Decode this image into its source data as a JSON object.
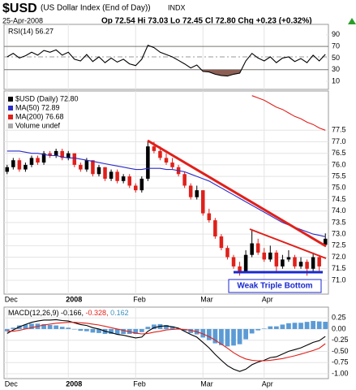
{
  "header": {
    "symbol": "$USD",
    "name": "(US Dollar Index (End of Day))",
    "exchange": "INDX",
    "date": "25-Apr-2008",
    "quote": "Op 72.54 Hi 73.03 Lo 72.45 Cl 72.80 Chg +0.23 (+0.32%)"
  },
  "chart_data": [
    {
      "type": "line",
      "title": "RSI(14) 56.27",
      "ylim": [
        -4,
        108
      ],
      "yticks": [
        90,
        70,
        50,
        30,
        10
      ],
      "bands": [
        70,
        30
      ],
      "band_fill": "#8c5f55",
      "series": [
        {
          "color": "#000000",
          "values": [
            52,
            58,
            50,
            54,
            60,
            55,
            63,
            60,
            64,
            55,
            60,
            48,
            45,
            56,
            44,
            52,
            42,
            50,
            43,
            48,
            40,
            37,
            48,
            72,
            68,
            60,
            56,
            52,
            46,
            40,
            33,
            38,
            27,
            26,
            22,
            20,
            19,
            22,
            24,
            45,
            58,
            50,
            45,
            52,
            42,
            50,
            52,
            44,
            49,
            42,
            55,
            45,
            56.27
          ]
        }
      ]
    },
    {
      "type": "candlestick",
      "ylim": [
        70.4,
        79.2
      ],
      "grid": true,
      "yticks": [
        77.5,
        {
          "value": 77,
          "label": "77.0"
        },
        76.5,
        {
          "value": 76,
          "label": "76.0"
        },
        75.5,
        {
          "value": 75,
          "label": "75.0"
        },
        74.5,
        {
          "value": 74,
          "label": "74.0"
        },
        73.5,
        {
          "value": 73,
          "label": "73.0"
        },
        72.5,
        {
          "value": 72,
          "label": "72.0"
        },
        71.5,
        {
          "value": 71,
          "label": "71.0"
        }
      ],
      "categories": [
        "Dec",
        null,
        null,
        null,
        null,
        null,
        null,
        null,
        null,
        null,
        "2008",
        null,
        null,
        null,
        null,
        null,
        null,
        null,
        null,
        null,
        null,
        "Feb",
        null,
        null,
        null,
        null,
        null,
        null,
        null,
        null,
        null,
        null,
        "Mar",
        null,
        null,
        null,
        null,
        null,
        null,
        null,
        null,
        null,
        "Apr",
        null,
        null,
        null,
        null,
        null,
        null,
        null,
        null,
        null,
        null
      ],
      "annotation": "Weak Triple Bottom",
      "legend_extra": "Volume undef",
      "series": [
        {
          "name": "$USD (Daily) 72.80",
          "up_color": "#000000",
          "down_color": "#e0201a",
          "ohlc": [
            [
              75.7,
              76.0,
              75.6,
              75.9
            ],
            [
              75.9,
              76.3,
              75.8,
              76.2
            ],
            [
              76.2,
              76.3,
              75.7,
              75.8
            ],
            [
              75.8,
              76.1,
              75.7,
              76.0
            ],
            [
              76.0,
              76.4,
              75.9,
              76.3
            ],
            [
              76.3,
              76.4,
              76.0,
              76.1
            ],
            [
              76.1,
              76.6,
              76.0,
              76.5
            ],
            [
              76.5,
              76.6,
              76.3,
              76.4
            ],
            [
              76.4,
              76.7,
              76.3,
              76.6
            ],
            [
              76.6,
              76.7,
              76.2,
              76.3
            ],
            [
              76.3,
              76.6,
              76.2,
              76.5
            ],
            [
              76.5,
              76.5,
              75.9,
              76.0
            ],
            [
              76.0,
              76.1,
              75.7,
              75.8
            ],
            [
              75.8,
              76.3,
              75.7,
              76.2
            ],
            [
              76.2,
              76.2,
              75.5,
              75.6
            ],
            [
              75.6,
              76.0,
              75.5,
              75.9
            ],
            [
              75.9,
              75.9,
              75.3,
              75.4
            ],
            [
              75.4,
              75.8,
              75.3,
              75.7
            ],
            [
              75.7,
              75.8,
              75.2,
              75.3
            ],
            [
              75.3,
              75.6,
              75.2,
              75.5
            ],
            [
              75.5,
              75.6,
              75.0,
              75.1
            ],
            [
              75.1,
              75.2,
              74.8,
              74.9
            ],
            [
              74.9,
              75.5,
              74.8,
              75.4
            ],
            [
              75.4,
              77.0,
              75.3,
              76.8
            ],
            [
              76.8,
              77.0,
              76.5,
              76.6
            ],
            [
              76.6,
              76.8,
              76.2,
              76.3
            ],
            [
              76.3,
              76.5,
              76.0,
              76.1
            ],
            [
              76.1,
              76.3,
              75.8,
              75.9
            ],
            [
              75.9,
              76.0,
              75.5,
              75.6
            ],
            [
              75.6,
              75.7,
              75.0,
              75.1
            ],
            [
              75.1,
              75.2,
              74.5,
              74.6
            ],
            [
              74.6,
              75.1,
              74.5,
              74.9
            ],
            [
              74.9,
              74.9,
              73.8,
              73.9
            ],
            [
              73.9,
              74.1,
              73.5,
              73.6
            ],
            [
              73.6,
              73.7,
              72.8,
              72.9
            ],
            [
              72.9,
              73.0,
              72.3,
              72.4
            ],
            [
              72.4,
              72.5,
              71.9,
              72.0
            ],
            [
              72.0,
              72.1,
              71.5,
              71.6
            ],
            [
              71.6,
              71.8,
              71.2,
              71.4
            ],
            [
              71.4,
              72.3,
              71.3,
              72.1
            ],
            [
              72.1,
              73.2,
              72.0,
              72.6
            ],
            [
              72.6,
              72.8,
              72.1,
              72.2
            ],
            [
              72.2,
              72.4,
              71.8,
              71.9
            ],
            [
              71.9,
              72.5,
              71.8,
              72.2
            ],
            [
              72.2,
              72.3,
              71.4,
              71.6
            ],
            [
              71.6,
              72.1,
              71.5,
              71.9
            ],
            [
              71.9,
              72.3,
              71.8,
              72.0
            ],
            [
              72.0,
              72.1,
              71.5,
              71.6
            ],
            [
              71.6,
              72.0,
              71.5,
              71.8
            ],
            [
              71.8,
              71.9,
              71.2,
              71.5
            ],
            [
              71.5,
              72.2,
              71.4,
              72.0
            ],
            [
              72.0,
              72.1,
              71.4,
              71.6
            ],
            [
              72.54,
              73.03,
              72.45,
              72.8
            ]
          ]
        },
        {
          "name": "MA(50) 72.89",
          "color": "#2c2cc8",
          "values": [
            76.6,
            76.6,
            76.6,
            76.55,
            76.5,
            76.5,
            76.45,
            76.4,
            76.4,
            76.35,
            76.3,
            76.3,
            76.25,
            76.2,
            76.15,
            76.1,
            76.05,
            76.0,
            75.95,
            75.9,
            75.85,
            75.8,
            75.8,
            75.85,
            75.85,
            75.85,
            75.8,
            75.8,
            75.75,
            75.7,
            75.6,
            75.5,
            75.4,
            75.3,
            75.15,
            75.0,
            74.85,
            74.7,
            74.55,
            74.4,
            74.25,
            74.1,
            73.95,
            73.8,
            73.65,
            73.5,
            73.4,
            73.3,
            73.2,
            73.1,
            73.0,
            72.95,
            72.89
          ]
        },
        {
          "name": "MA(200) 76.68",
          "color": "#e0201a",
          "values": [
            null,
            null,
            null,
            null,
            null,
            null,
            null,
            null,
            null,
            null,
            null,
            null,
            null,
            null,
            null,
            null,
            null,
            null,
            null,
            null,
            null,
            null,
            null,
            null,
            null,
            null,
            null,
            null,
            null,
            null,
            null,
            null,
            null,
            null,
            null,
            null,
            null,
            null,
            null,
            null,
            79.0,
            78.9,
            78.8,
            78.65,
            78.5,
            78.4,
            78.25,
            78.1,
            78.0,
            77.85,
            77.75,
            77.6,
            77.5
          ]
        }
      ]
    },
    {
      "type": "line",
      "ylim": [
        -1.11,
        0.49
      ],
      "grid": true,
      "yticks": [
        0.25,
        {
          "value": 0,
          "label": "0.00"
        },
        -0.25,
        {
          "value": -0.5,
          "label": "-0.50"
        },
        -0.75,
        {
          "value": -1,
          "label": "-1.00"
        }
      ],
      "title_parts": [
        {
          "text": "MACD(12,26,9) -0.166,",
          "color": "#000000"
        },
        {
          "text": " -0.328,",
          "color": "#e0201a"
        },
        {
          "text": " 0.162",
          "color": "#3a8fbf"
        }
      ],
      "series": [
        {
          "type": "bar",
          "color": "#5b9bd5",
          "values": [
            -0.05,
            0.03,
            0.08,
            0.1,
            0.12,
            0.12,
            0.11,
            0.09,
            0.08,
            0.05,
            0.03,
            -0.01,
            -0.04,
            -0.05,
            -0.08,
            -0.09,
            -0.11,
            -0.11,
            -0.12,
            -0.11,
            -0.11,
            -0.11,
            -0.07,
            0.05,
            0.1,
            0.11,
            0.09,
            0.06,
            0.02,
            -0.04,
            -0.09,
            -0.12,
            -0.19,
            -0.25,
            -0.32,
            -0.36,
            -0.39,
            -0.37,
            -0.34,
            -0.23,
            -0.1,
            -0.03,
            0.01,
            0.06,
            0.06,
            0.1,
            0.13,
            0.14,
            0.14,
            0.16,
            0.18,
            0.17,
            0.162
          ]
        },
        {
          "color": "#000000",
          "values": [
            -0.1,
            -0.02,
            0.05,
            0.1,
            0.15,
            0.18,
            0.2,
            0.2,
            0.21,
            0.19,
            0.18,
            0.14,
            0.1,
            0.08,
            0.03,
            0.0,
            -0.05,
            -0.08,
            -0.12,
            -0.14,
            -0.17,
            -0.2,
            -0.18,
            -0.05,
            0.03,
            0.06,
            0.07,
            0.05,
            0.02,
            -0.05,
            -0.12,
            -0.18,
            -0.3,
            -0.42,
            -0.57,
            -0.7,
            -0.82,
            -0.9,
            -0.95,
            -0.9,
            -0.8,
            -0.74,
            -0.7,
            -0.64,
            -0.62,
            -0.56,
            -0.5,
            -0.46,
            -0.42,
            -0.36,
            -0.3,
            -0.26,
            -0.166
          ]
        },
        {
          "color": "#e0201a",
          "values": [
            -0.05,
            -0.05,
            -0.03,
            0.0,
            0.03,
            0.06,
            0.09,
            0.11,
            0.13,
            0.14,
            0.15,
            0.15,
            0.14,
            0.13,
            0.11,
            0.09,
            0.06,
            0.03,
            0.0,
            -0.03,
            -0.06,
            -0.09,
            -0.11,
            -0.1,
            -0.07,
            -0.05,
            -0.02,
            -0.01,
            0.0,
            -0.01,
            -0.03,
            -0.06,
            -0.11,
            -0.17,
            -0.25,
            -0.34,
            -0.43,
            -0.53,
            -0.61,
            -0.67,
            -0.7,
            -0.71,
            -0.71,
            -0.7,
            -0.68,
            -0.66,
            -0.63,
            -0.6,
            -0.56,
            -0.52,
            -0.48,
            -0.43,
            -0.328
          ]
        }
      ]
    }
  ]
}
